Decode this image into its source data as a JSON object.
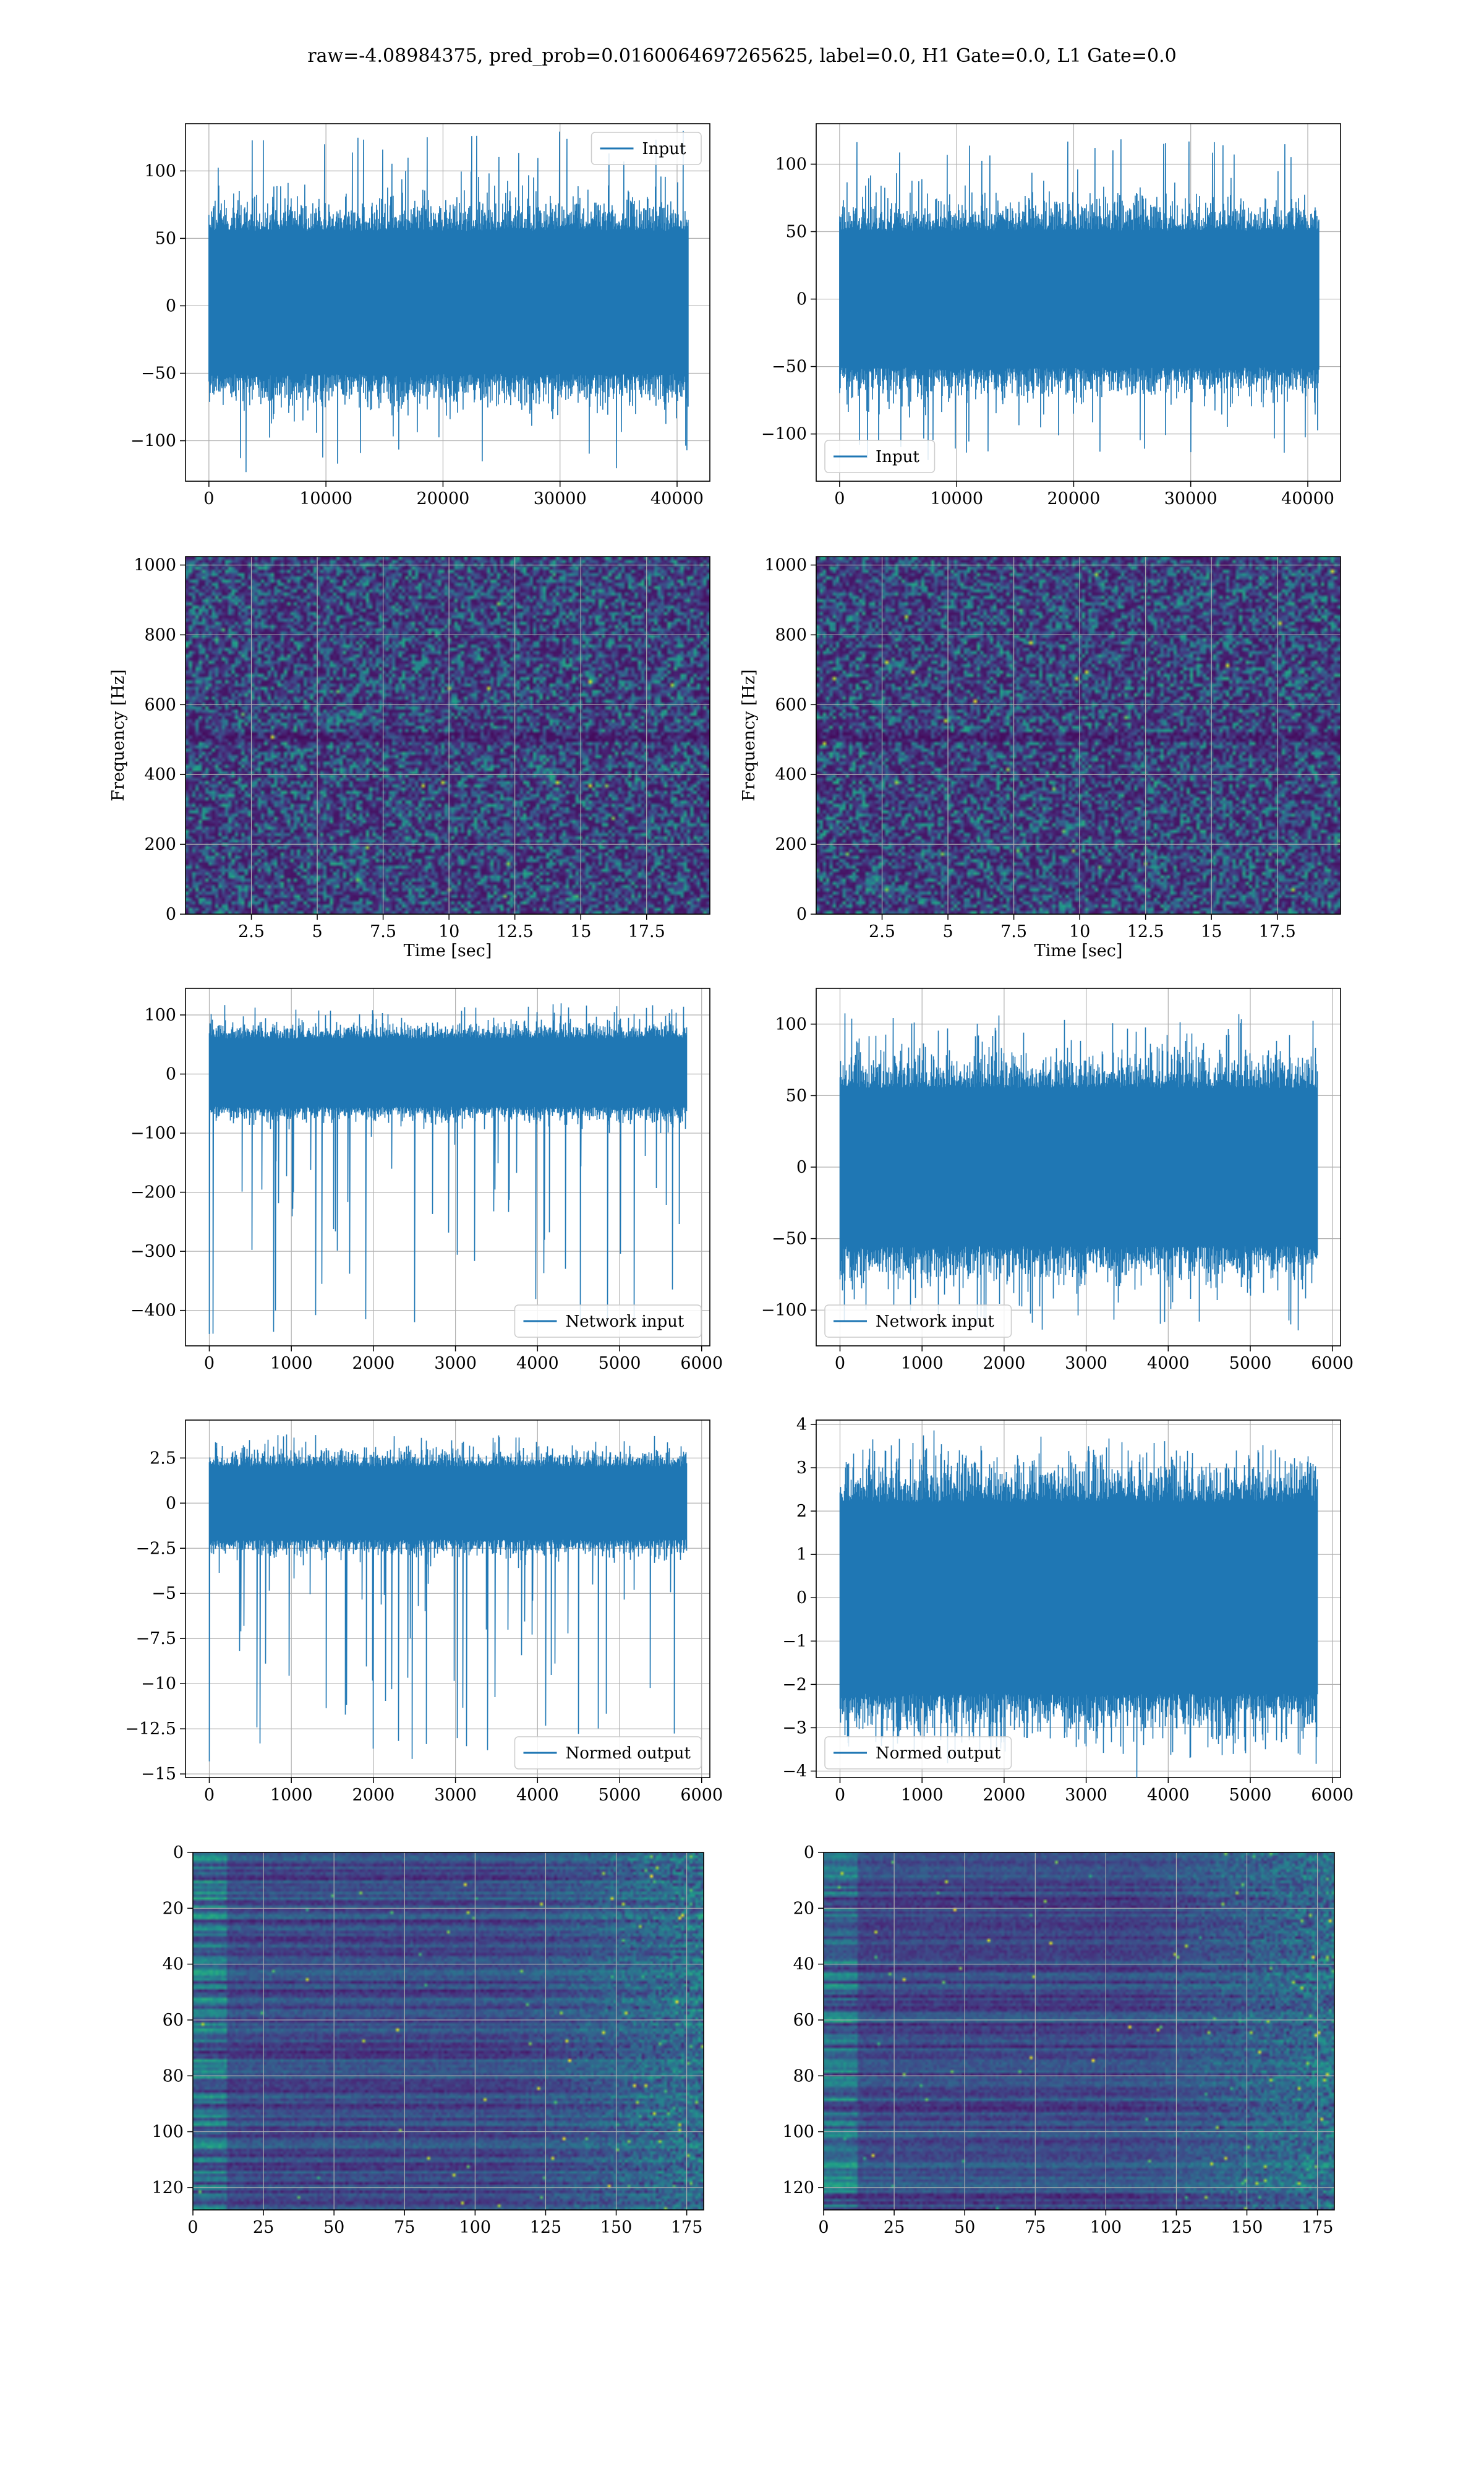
{
  "title": "raw=-4.08984375, pred_prob=0.0160064697265625, label=0.0, H1 Gate=0.0, L1 Gate=0.0",
  "colors": {
    "series": "#1f77b4",
    "grid": "#b0b0b0",
    "viridis_low": "#440154",
    "viridis_high": "#fde725"
  },
  "chart_data": [
    {
      "type": "line",
      "panel": "row1-left",
      "legend": "Input",
      "legend_loc": "upper right",
      "xlim": [
        -2000,
        42800
      ],
      "ylim": [
        -130,
        135
      ],
      "xticks": [
        0,
        10000,
        20000,
        30000,
        40000
      ],
      "yticks": [
        -100,
        -50,
        0,
        50,
        100
      ],
      "n_samples": 40960,
      "band": [
        -55,
        60
      ],
      "peak_max": 130,
      "peak_min": -125
    },
    {
      "type": "line",
      "panel": "row1-right",
      "legend": "Input",
      "legend_loc": "lower left",
      "xlim": [
        -2000,
        42800
      ],
      "ylim": [
        -135,
        130
      ],
      "xticks": [
        0,
        10000,
        20000,
        30000,
        40000
      ],
      "yticks": [
        -100,
        -50,
        0,
        50,
        100
      ],
      "n_samples": 40960,
      "band": [
        -55,
        55
      ],
      "peak_max": 125,
      "peak_min": -120
    },
    {
      "type": "heatmap",
      "panel": "row2-left",
      "xlabel": "Time [sec]",
      "ylabel": "Frequency [Hz]",
      "xlim": [
        0,
        19.9
      ],
      "ylim": [
        0,
        1024
      ],
      "xticks": [
        2.5,
        5.0,
        7.5,
        10.0,
        12.5,
        15.0,
        17.5
      ],
      "yticks": [
        0,
        200,
        400,
        600,
        800,
        1000
      ],
      "colormap": "viridis",
      "content": "spectrogram of noise"
    },
    {
      "type": "heatmap",
      "panel": "row2-right",
      "xlabel": "Time [sec]",
      "ylabel": "Frequency [Hz]",
      "xlim": [
        0,
        19.9
      ],
      "ylim": [
        0,
        1024
      ],
      "xticks": [
        2.5,
        5.0,
        7.5,
        10.0,
        12.5,
        15.0,
        17.5
      ],
      "yticks": [
        0,
        200,
        400,
        600,
        800,
        1000
      ],
      "colormap": "viridis",
      "content": "spectrogram of noise"
    },
    {
      "type": "line",
      "panel": "row3-left",
      "legend": "Network input",
      "legend_loc": "lower right",
      "xlim": [
        -290,
        6100
      ],
      "ylim": [
        -460,
        145
      ],
      "xticks": [
        0,
        1000,
        2000,
        3000,
        4000,
        5000,
        6000
      ],
      "yticks": [
        -400,
        -300,
        -200,
        -100,
        0,
        100
      ],
      "n_samples": 5820,
      "band": [
        -60,
        65
      ],
      "peak_max": 120,
      "peak_min": -440
    },
    {
      "type": "line",
      "panel": "row3-right",
      "legend": "Network input",
      "legend_loc": "lower left",
      "xlim": [
        -290,
        6100
      ],
      "ylim": [
        -125,
        125
      ],
      "xticks": [
        0,
        1000,
        2000,
        3000,
        4000,
        5000,
        6000
      ],
      "yticks": [
        -100,
        -50,
        0,
        50,
        100
      ],
      "n_samples": 5820,
      "band": [
        -60,
        60
      ],
      "peak_max": 108,
      "peak_min": -115
    },
    {
      "type": "line",
      "panel": "row4-left",
      "legend": "Normed output",
      "legend_loc": "lower right",
      "xlim": [
        -290,
        6100
      ],
      "ylim": [
        -15.2,
        4.6
      ],
      "xticks": [
        0,
        1000,
        2000,
        3000,
        4000,
        5000,
        6000
      ],
      "yticks": [
        -15.0,
        -12.5,
        -10.0,
        -7.5,
        -5.0,
        -2.5,
        0.0,
        2.5
      ],
      "n_samples": 5820,
      "band": [
        -2.2,
        2.2
      ],
      "peak_max": 3.8,
      "peak_min": -14.3
    },
    {
      "type": "line",
      "panel": "row4-right",
      "legend": "Normed output",
      "legend_loc": "lower left",
      "xlim": [
        -290,
        6100
      ],
      "ylim": [
        -4.15,
        4.1
      ],
      "xticks": [
        0,
        1000,
        2000,
        3000,
        4000,
        5000,
        6000
      ],
      "yticks": [
        -4,
        -3,
        -2,
        -1,
        0,
        1,
        2,
        3,
        4
      ],
      "n_samples": 5820,
      "band": [
        -2.4,
        2.4
      ],
      "peak_max": 3.7,
      "peak_min": -3.7
    },
    {
      "type": "heatmap",
      "panel": "row5-left",
      "xlim": [
        0,
        181
      ],
      "ylim": [
        128,
        0
      ],
      "xticks": [
        0,
        25,
        50,
        75,
        100,
        125,
        150,
        175
      ],
      "yticks": [
        0,
        20,
        40,
        60,
        80,
        100,
        120
      ],
      "colormap": "viridis",
      "content": "feature map 128 x 181"
    },
    {
      "type": "heatmap",
      "panel": "row5-right",
      "xlim": [
        0,
        181
      ],
      "ylim": [
        128,
        0
      ],
      "xticks": [
        0,
        25,
        50,
        75,
        100,
        125,
        150,
        175
      ],
      "yticks": [
        0,
        20,
        40,
        60,
        80,
        100,
        120
      ],
      "colormap": "viridis",
      "content": "feature map 128 x 181"
    }
  ]
}
